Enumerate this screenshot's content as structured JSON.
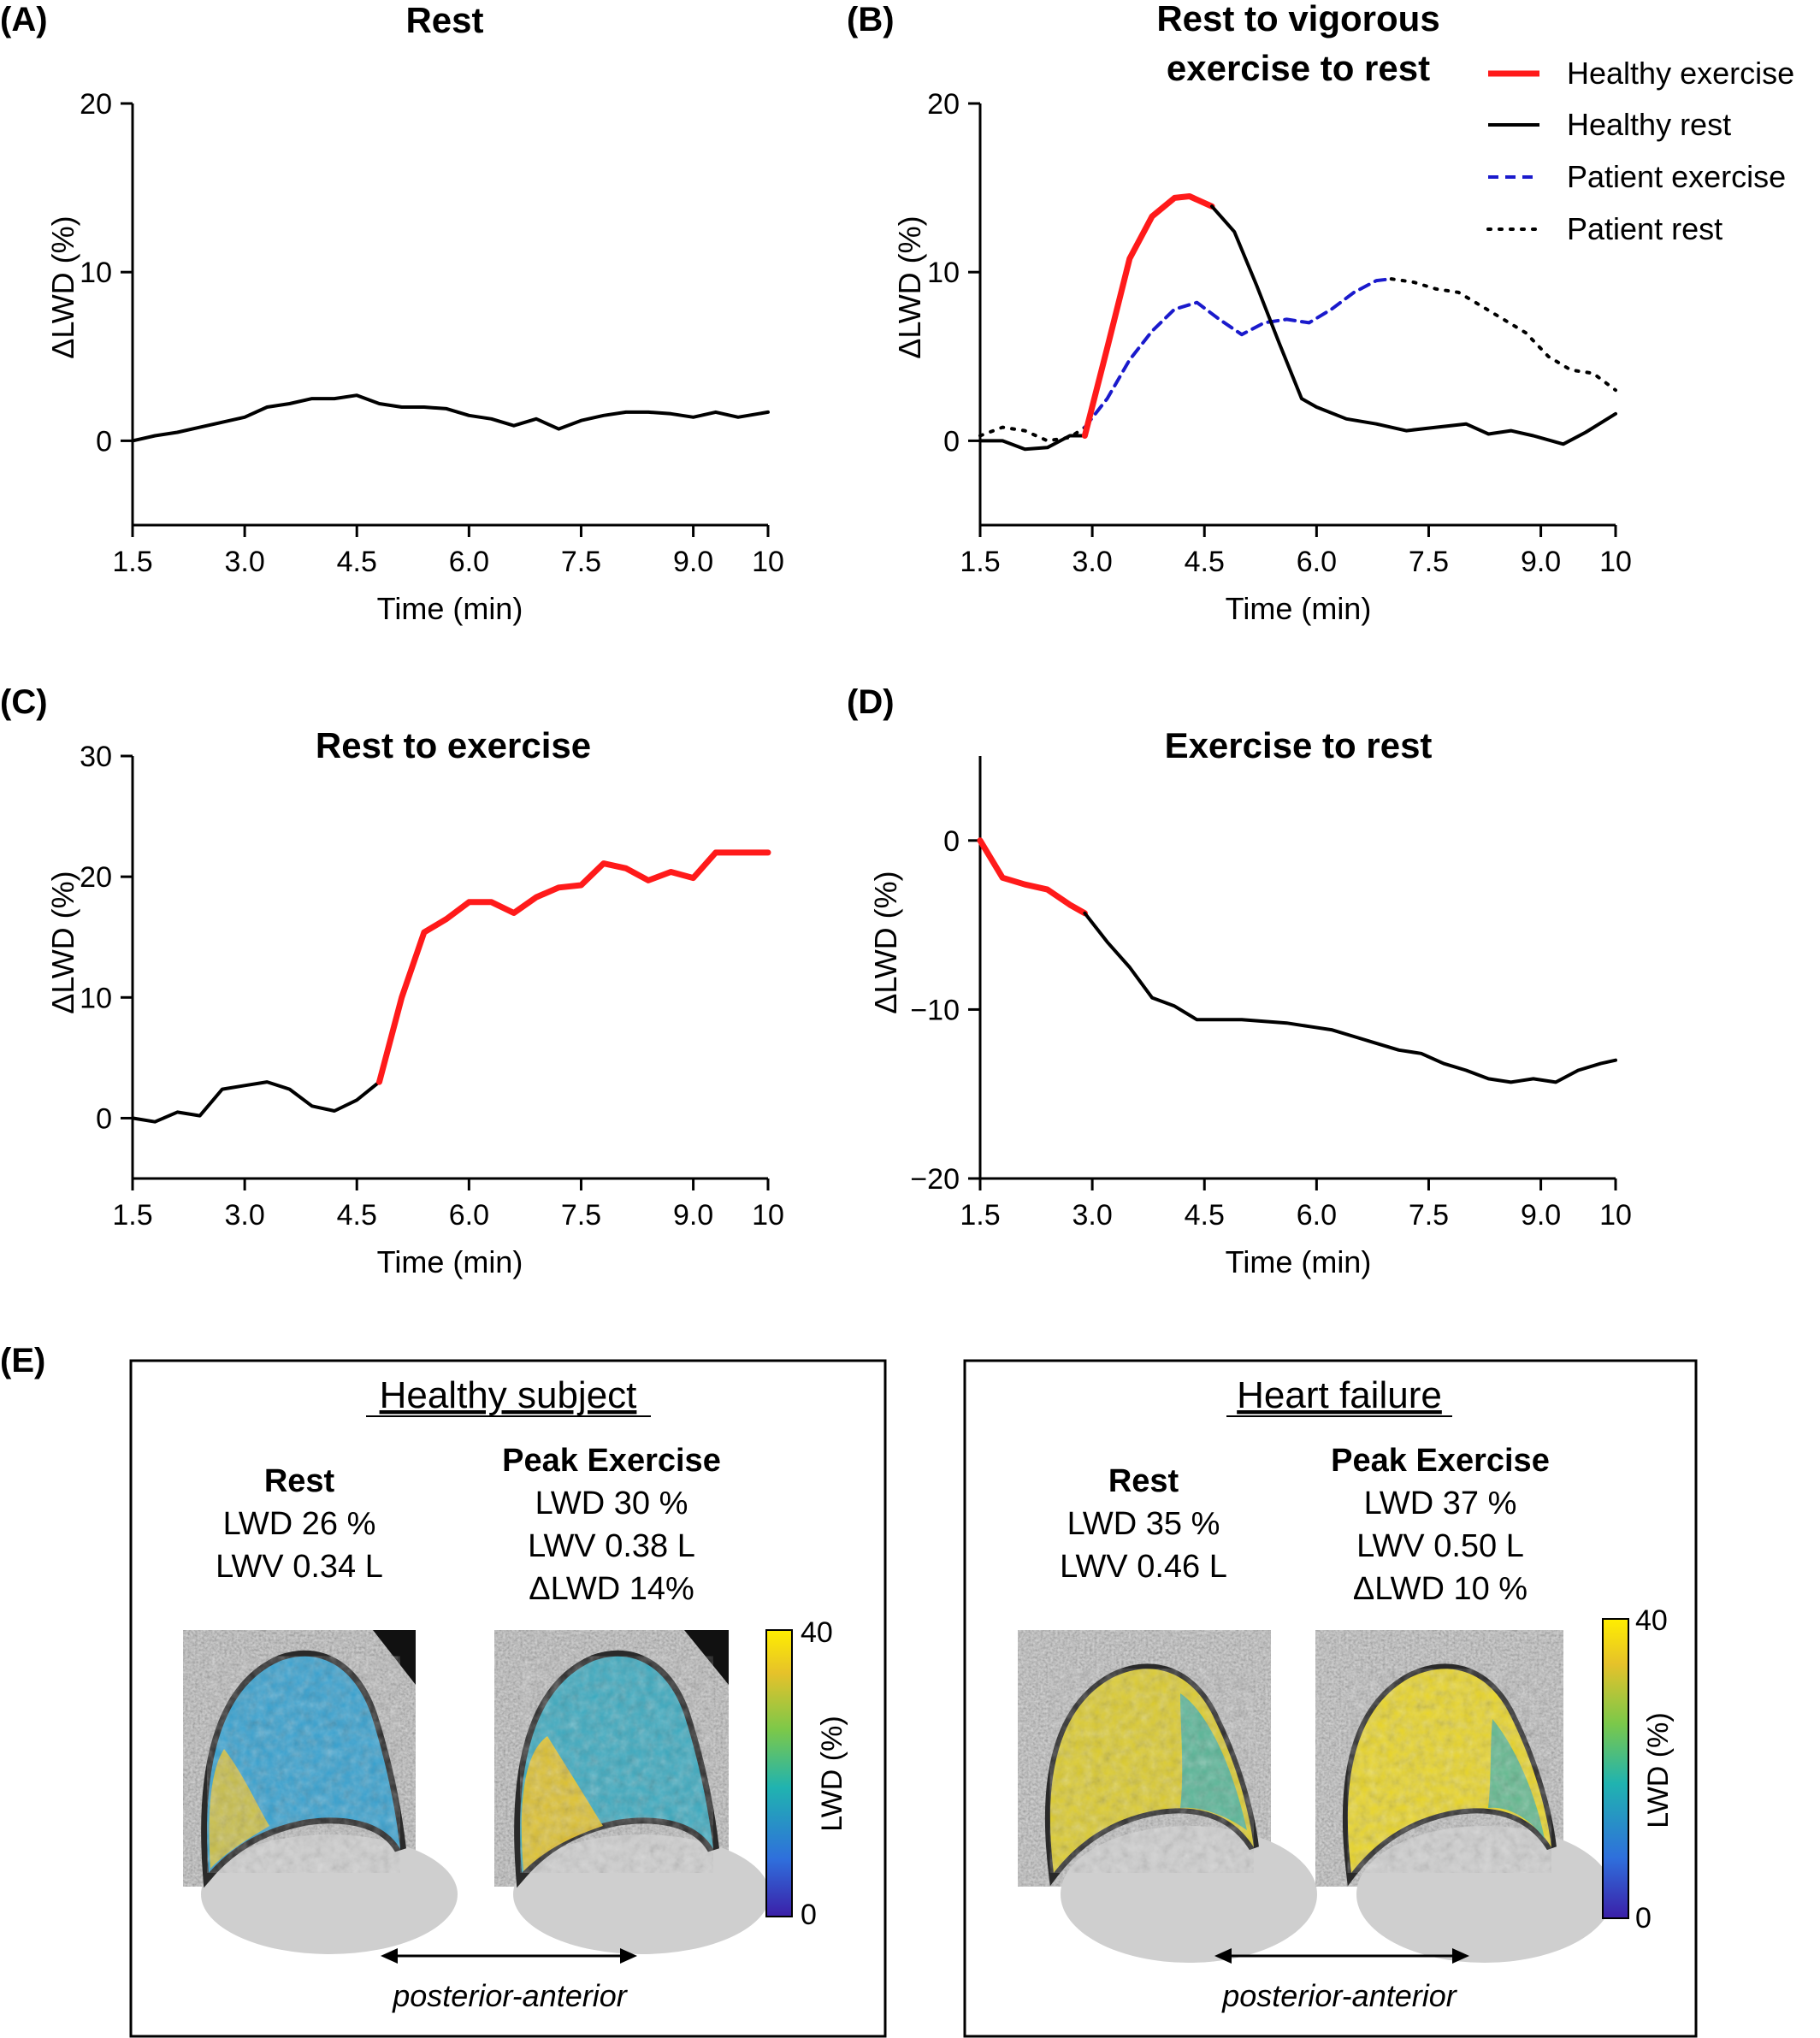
{
  "colors": {
    "healthy_exercise": "#ff1a1a",
    "healthy_rest": "#000000",
    "patient_exercise": "#1a1acc",
    "patient_rest": "#000000",
    "colormap": [
      "#3b1fa8",
      "#2f6fdc",
      "#20b3b0",
      "#7bc84a",
      "#e6c22a",
      "#ffee00"
    ]
  },
  "chart_data": [
    {
      "type": "line",
      "panel_label": "(A)",
      "title": "Rest",
      "xlabel": "Time (min)",
      "ylabel": "ΔLWD (%)",
      "xlim": [
        1.5,
        10
      ],
      "ylim": [
        -5,
        20
      ],
      "xticks": [
        1.5,
        3.0,
        4.5,
        6.0,
        7.5,
        9.0,
        10
      ],
      "xtick_labels": [
        "1.5",
        "3.0",
        "4.5",
        "6.0",
        "7.5",
        "9.0",
        "10"
      ],
      "yticks": [
        0,
        10,
        20
      ],
      "ytick_labels": [
        "0",
        "10",
        "20"
      ],
      "segments": [
        {
          "style": "healthy_rest",
          "x": [
            1.5,
            1.8,
            2.1,
            2.4,
            2.7,
            3.0,
            3.3,
            3.6,
            3.9,
            4.2,
            4.5,
            4.8,
            5.1,
            5.4,
            5.7,
            6.0,
            6.3,
            6.6,
            6.9,
            7.2,
            7.5,
            7.8,
            8.1,
            8.4,
            8.7,
            9.0,
            9.3,
            9.6,
            10.0
          ],
          "y": [
            0.0,
            0.3,
            0.5,
            0.8,
            1.1,
            1.4,
            2.0,
            2.2,
            2.5,
            2.5,
            2.7,
            2.2,
            2.0,
            2.0,
            1.9,
            1.5,
            1.3,
            0.9,
            1.3,
            0.7,
            1.2,
            1.5,
            1.7,
            1.7,
            1.6,
            1.4,
            1.7,
            1.4,
            1.7
          ]
        }
      ]
    },
    {
      "type": "line",
      "panel_label": "(B)",
      "title": [
        "Rest to vigorous",
        "exercise to rest"
      ],
      "xlabel": "Time (min)",
      "ylabel": "ΔLWD (%)",
      "xlim": [
        1.5,
        10
      ],
      "ylim": [
        -5,
        20
      ],
      "xticks": [
        1.5,
        3.0,
        4.5,
        6.0,
        7.5,
        9.0,
        10
      ],
      "xtick_labels": [
        "1.5",
        "3.0",
        "4.5",
        "6.0",
        "7.5",
        "9.0",
        "10"
      ],
      "yticks": [
        0,
        10,
        20
      ],
      "ytick_labels": [
        "0",
        "10",
        "20"
      ],
      "legend": [
        {
          "label": "Healthy exercise",
          "style": "healthy_exercise"
        },
        {
          "label": "Healthy rest",
          "style": "healthy_rest"
        },
        {
          "label": "Patient exercise",
          "style": "patient_exercise"
        },
        {
          "label": "Patient rest",
          "style": "patient_rest"
        }
      ],
      "legend_position": "top-right",
      "segments": [
        {
          "style": "patient_rest",
          "x": [
            1.5,
            1.8,
            2.1,
            2.4,
            2.7,
            2.9
          ],
          "y": [
            0.3,
            0.8,
            0.6,
            0.0,
            0.2,
            0.8
          ]
        },
        {
          "style": "patient_exercise",
          "x": [
            2.9,
            3.2,
            3.5,
            3.8,
            4.1,
            4.4,
            4.7,
            5.0,
            5.3,
            5.6,
            5.9,
            6.2,
            6.5,
            6.8,
            7.0
          ],
          "y": [
            0.8,
            2.5,
            4.8,
            6.5,
            7.8,
            8.2,
            7.2,
            6.3,
            7.0,
            7.2,
            7.0,
            7.8,
            8.8,
            9.5,
            9.6
          ]
        },
        {
          "style": "patient_rest",
          "x": [
            7.0,
            7.3,
            7.6,
            7.9,
            8.2,
            8.5,
            8.8,
            9.1,
            9.4,
            9.7,
            10.0
          ],
          "y": [
            9.6,
            9.4,
            9.0,
            8.8,
            8.0,
            7.2,
            6.4,
            5.0,
            4.2,
            4.0,
            3.0
          ]
        },
        {
          "style": "healthy_rest",
          "x": [
            1.5,
            1.8,
            2.1,
            2.4,
            2.7,
            2.9
          ],
          "y": [
            0.0,
            0.0,
            -0.5,
            -0.4,
            0.3,
            0.3
          ]
        },
        {
          "style": "healthy_exercise",
          "x": [
            2.9,
            3.2,
            3.5,
            3.8,
            4.1,
            4.3,
            4.6
          ],
          "y": [
            0.3,
            5.5,
            10.8,
            13.3,
            14.4,
            14.5,
            13.9
          ]
        },
        {
          "style": "healthy_rest",
          "x": [
            4.6,
            4.9,
            5.2,
            5.5,
            5.8,
            6.0,
            6.4,
            6.8,
            7.2,
            7.6,
            8.0,
            8.3,
            8.6,
            8.9,
            9.3,
            9.6,
            10.0
          ],
          "y": [
            13.9,
            12.4,
            9.2,
            5.8,
            2.5,
            2.0,
            1.3,
            1.0,
            0.6,
            0.8,
            1.0,
            0.4,
            0.6,
            0.3,
            -0.2,
            0.5,
            1.6
          ]
        }
      ]
    },
    {
      "type": "line",
      "panel_label": "(C)",
      "title": "Rest to exercise",
      "xlabel": "Time (min)",
      "ylabel": "ΔLWD (%)",
      "xlim": [
        1.5,
        10
      ],
      "ylim": [
        -5,
        30
      ],
      "xticks": [
        1.5,
        3.0,
        4.5,
        6.0,
        7.5,
        9.0,
        10
      ],
      "xtick_labels": [
        "1.5",
        "3.0",
        "4.5",
        "6.0",
        "7.5",
        "9.0",
        "10"
      ],
      "yticks": [
        0,
        10,
        20,
        30
      ],
      "ytick_labels": [
        "0",
        "10",
        "20",
        "30"
      ],
      "segments": [
        {
          "style": "healthy_rest",
          "x": [
            1.5,
            1.8,
            2.1,
            2.4,
            2.7,
            3.0,
            3.3,
            3.6,
            3.9,
            4.2,
            4.5,
            4.8
          ],
          "y": [
            0.0,
            -0.3,
            0.5,
            0.2,
            2.4,
            2.7,
            3.0,
            2.4,
            1.0,
            0.6,
            1.5,
            3.0
          ]
        },
        {
          "style": "healthy_exercise",
          "x": [
            4.8,
            5.1,
            5.4,
            5.7,
            6.0,
            6.3,
            6.6,
            6.9,
            7.2,
            7.5,
            7.8,
            8.1,
            8.4,
            8.7,
            9.0,
            9.3,
            9.6,
            10.0
          ],
          "y": [
            3.0,
            10.0,
            15.4,
            16.5,
            17.9,
            17.9,
            17.0,
            18.3,
            19.1,
            19.3,
            21.1,
            20.7,
            19.7,
            20.4,
            19.9,
            22.0,
            22.0,
            22.0
          ]
        }
      ]
    },
    {
      "type": "line",
      "panel_label": "(D)",
      "title": "Exercise to rest",
      "xlabel": "Time (min)",
      "ylabel": "ΔLWD (%)",
      "xlim": [
        1.5,
        10
      ],
      "ylim": [
        -20,
        5
      ],
      "xticks": [
        1.5,
        3.0,
        4.5,
        6.0,
        7.5,
        9.0,
        10
      ],
      "xtick_labels": [
        "1.5",
        "3.0",
        "4.5",
        "6.0",
        "7.5",
        "9.0",
        "10"
      ],
      "yticks": [
        -20,
        -10,
        0
      ],
      "ytick_labels": [
        "−20",
        "−10",
        "0"
      ],
      "segments": [
        {
          "style": "healthy_exercise",
          "x": [
            1.5,
            1.8,
            2.1,
            2.4,
            2.7,
            2.9
          ],
          "y": [
            0.0,
            -2.2,
            -2.6,
            -2.9,
            -3.8,
            -4.3
          ]
        },
        {
          "style": "healthy_rest",
          "x": [
            2.9,
            3.2,
            3.5,
            3.8,
            4.1,
            4.4,
            4.7,
            5.0,
            5.3,
            5.6,
            5.9,
            6.2,
            6.5,
            6.8,
            7.1,
            7.4,
            7.7,
            8.0,
            8.3,
            8.6,
            8.9,
            9.2,
            9.5,
            9.8,
            10.0
          ],
          "y": [
            -4.3,
            -6.0,
            -7.5,
            -9.3,
            -9.8,
            -10.6,
            -10.6,
            -10.6,
            -10.7,
            -10.8,
            -11.0,
            -11.2,
            -11.6,
            -12.0,
            -12.4,
            -12.6,
            -13.2,
            -13.6,
            -14.1,
            -14.3,
            -14.1,
            -14.3,
            -13.6,
            -13.2,
            -13.0
          ]
        }
      ]
    }
  ],
  "panel_e": {
    "label": "(E)",
    "healthy": {
      "title": "Healthy subject",
      "rest": {
        "heading": "Rest",
        "lines": [
          "LWD 26 %",
          "LWV 0.34 L"
        ]
      },
      "peak": {
        "heading": "Peak Exercise",
        "lines": [
          "LWD 30 %",
          "LWV 0.38 L",
          "ΔLWD 14%"
        ]
      },
      "direction": "posterior-anterior"
    },
    "heart_failure": {
      "title": "Heart failure",
      "rest": {
        "heading": "Rest",
        "lines": [
          "LWD 35 %",
          "LWV 0.46 L"
        ]
      },
      "peak": {
        "heading": "Peak Exercise",
        "lines": [
          "LWD 37 %",
          "LWV 0.50 L",
          "ΔLWD 10 %"
        ]
      },
      "direction": "posterior-anterior"
    },
    "colorbar": {
      "label": "LWD (%)",
      "max": "40",
      "min": "0"
    }
  }
}
